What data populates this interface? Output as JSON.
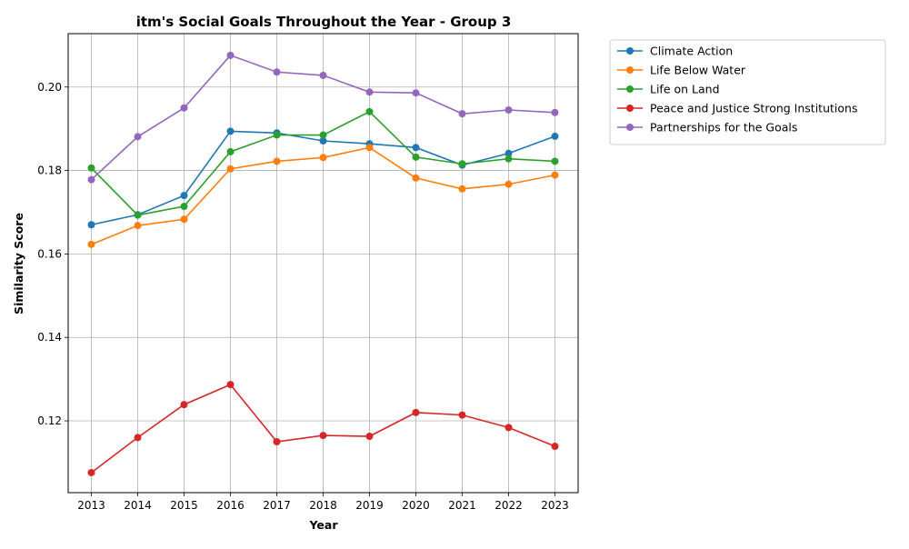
{
  "chart_data": {
    "type": "line",
    "title": "itm's Social Goals Throughout the Year - Group 3",
    "xlabel": "Year",
    "ylabel": "Similarity Score",
    "x": [
      2013,
      2014,
      2015,
      2016,
      2017,
      2018,
      2019,
      2020,
      2021,
      2022,
      2023
    ],
    "xlim": [
      2012.5,
      2023.5
    ],
    "ylim": [
      0.1028,
      0.2128
    ],
    "yticks": [
      "0.12",
      "0.14",
      "0.16",
      "0.18",
      "0.20"
    ],
    "ytick_values": [
      0.12,
      0.14,
      0.16,
      0.18,
      0.2
    ],
    "grid": true,
    "legend_position": "outside upper right",
    "series": [
      {
        "name": "Climate Action",
        "color": "#1f77b4",
        "values": [
          0.167,
          0.1694,
          0.174,
          0.1894,
          0.189,
          0.1871,
          0.1864,
          0.1855,
          0.1813,
          0.1841,
          0.1882
        ]
      },
      {
        "name": "Life Below Water",
        "color": "#ff7f0e",
        "values": [
          0.1623,
          0.1668,
          0.1683,
          0.1804,
          0.1822,
          0.1831,
          0.1855,
          0.1782,
          0.1756,
          0.1767,
          0.1789
        ]
      },
      {
        "name": "Life on Land",
        "color": "#2ca02c",
        "values": [
          0.1806,
          0.1693,
          0.1714,
          0.1845,
          0.1885,
          0.1885,
          0.1941,
          0.1832,
          0.1816,
          0.1828,
          0.1822
        ]
      },
      {
        "name": "Peace and Justice Strong Institutions",
        "color": "#d62728",
        "values": [
          0.1076,
          0.116,
          0.1239,
          0.1287,
          0.115,
          0.1165,
          0.1163,
          0.122,
          0.1214,
          0.1184,
          0.1139
        ]
      },
      {
        "name": "Partnerships for the Goals",
        "color": "#9467bd",
        "values": [
          0.1778,
          0.1881,
          0.195,
          0.2076,
          0.2036,
          0.2028,
          0.1988,
          0.1986,
          0.1936,
          0.1945,
          0.1939
        ]
      }
    ]
  }
}
